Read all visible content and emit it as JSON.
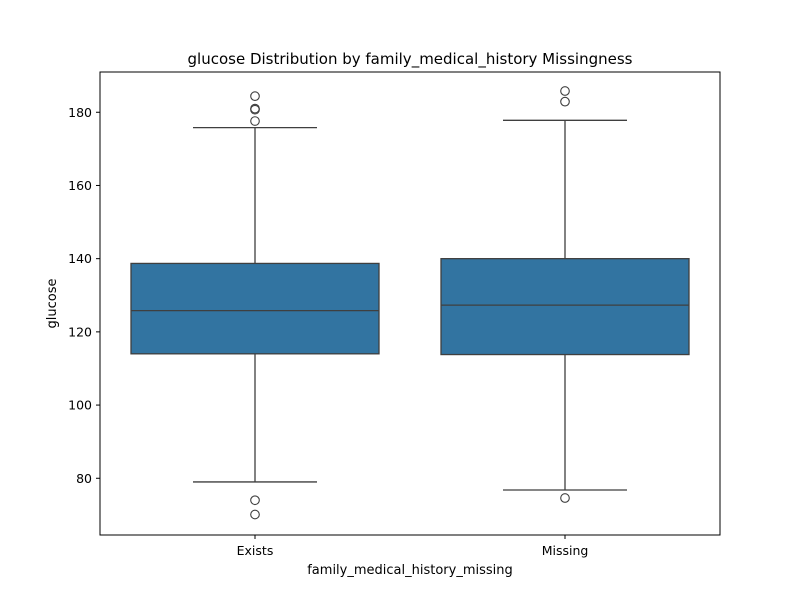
{
  "chart_data": {
    "type": "box",
    "title": "glucose Distribution by family_medical_history Missingness",
    "xlabel": "family_medical_history_missing",
    "ylabel": "glucose",
    "categories": [
      "Exists",
      "Missing"
    ],
    "ylim": [
      64.5,
      191
    ],
    "yticks": [
      80,
      100,
      120,
      140,
      160,
      180
    ],
    "grid": false,
    "legend": "none",
    "colors": {
      "box_fill": "#3274a1",
      "line": "#3f3f3f",
      "axis": "#000000"
    },
    "boxes": [
      {
        "category": "Exists",
        "whisker_low": 79.0,
        "q1": 114.0,
        "median": 125.8,
        "q3": 138.7,
        "whisker_high": 175.8,
        "outliers": [
          184.4,
          181.0,
          180.7,
          177.6,
          74.0,
          70.1
        ]
      },
      {
        "category": "Missing",
        "whisker_low": 76.8,
        "q1": 113.8,
        "median": 127.3,
        "q3": 140.0,
        "whisker_high": 177.8,
        "outliers": [
          185.8,
          182.9,
          74.6
        ]
      }
    ]
  }
}
